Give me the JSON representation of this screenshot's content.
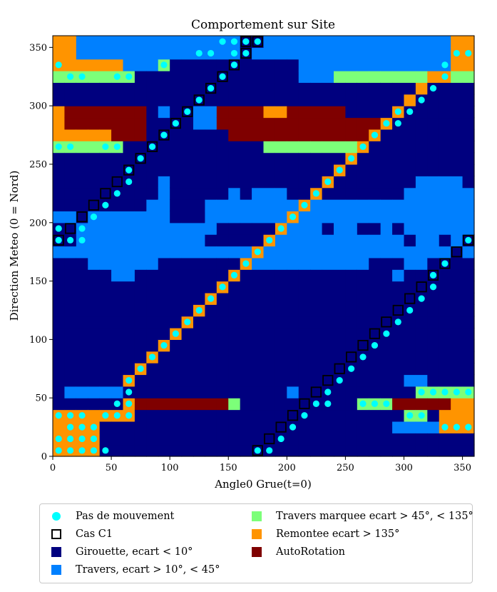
{
  "chart_data": {
    "type": "heatmap",
    "title": "Comportement sur Site",
    "xlabel": "Angle0 Grue(t=0)",
    "ylabel": "Direction Meteo (0 = Nord)",
    "xlim": [
      0,
      360
    ],
    "ylim": [
      0,
      360
    ],
    "xticks": [
      0,
      50,
      100,
      150,
      200,
      250,
      300,
      350
    ],
    "yticks": [
      0,
      50,
      100,
      150,
      200,
      250,
      300,
      350
    ],
    "cell_size": 10,
    "colors": {
      "girouette": "#00007f",
      "travers": "#0080ff",
      "travers_marquee": "#7cff79",
      "remontee": "#ff9400",
      "autorotation": "#7f0000",
      "pas_de_mouvement": "#00ffff",
      "cas_c1": "#000000"
    },
    "default_class": "girouette",
    "regions": [
      {
        "cls": "travers",
        "x": [
          20,
          360
        ],
        "y": [
          350,
          360
        ]
      },
      {
        "cls": "travers",
        "x": [
          20,
          360
        ],
        "y": [
          340,
          350
        ]
      },
      {
        "cls": "travers",
        "x": [
          50,
          90
        ],
        "y": [
          330,
          340
        ]
      },
      {
        "cls": "travers",
        "x": [
          210,
          340
        ],
        "y": [
          330,
          340
        ]
      },
      {
        "cls": "travers",
        "x": [
          210,
          340
        ],
        "y": [
          320,
          330
        ]
      },
      {
        "cls": "travers",
        "x": [
          120,
          140
        ],
        "y": [
          280,
          290
        ]
      },
      {
        "cls": "travers",
        "x": [
          120,
          140
        ],
        "y": [
          290,
          300
        ]
      },
      {
        "cls": "travers",
        "x": [
          90,
          100
        ],
        "y": [
          290,
          300
        ]
      },
      {
        "cls": "travers",
        "x": [
          40,
          50
        ],
        "y": [
          220,
          230
        ]
      },
      {
        "cls": "travers",
        "x": [
          30,
          40
        ],
        "y": [
          210,
          220
        ]
      },
      {
        "cls": "travers",
        "x": [
          50,
          60
        ],
        "y": [
          230,
          240
        ]
      },
      {
        "cls": "travers",
        "x": [
          80,
          100
        ],
        "y": [
          210,
          220
        ]
      },
      {
        "cls": "travers",
        "x": [
          90,
          100
        ],
        "y": [
          220,
          240
        ]
      },
      {
        "cls": "travers",
        "x": [
          170,
          200
        ],
        "y": [
          220,
          230
        ]
      },
      {
        "cls": "travers",
        "x": [
          150,
          160
        ],
        "y": [
          220,
          230
        ]
      },
      {
        "cls": "travers",
        "x": [
          300,
          360
        ],
        "y": [
          220,
          230
        ]
      },
      {
        "cls": "travers",
        "x": [
          310,
          350
        ],
        "y": [
          230,
          240
        ]
      },
      {
        "cls": "travers",
        "x": [
          130,
          360
        ],
        "y": [
          210,
          220
        ]
      },
      {
        "cls": "travers",
        "x": [
          0,
          100
        ],
        "y": [
          200,
          210
        ]
      },
      {
        "cls": "travers",
        "x": [
          130,
          360
        ],
        "y": [
          200,
          210
        ]
      },
      {
        "cls": "travers",
        "x": [
          20,
          140
        ],
        "y": [
          190,
          200
        ]
      },
      {
        "cls": "travers",
        "x": [
          190,
          260
        ],
        "y": [
          190,
          200
        ]
      },
      {
        "cls": "travers",
        "x": [
          280,
          360
        ],
        "y": [
          190,
          200
        ]
      },
      {
        "cls": "travers",
        "x": [
          20,
          130
        ],
        "y": [
          180,
          190
        ]
      },
      {
        "cls": "travers",
        "x": [
          190,
          360
        ],
        "y": [
          180,
          190
        ]
      },
      {
        "cls": "travers",
        "x": [
          0,
          360
        ],
        "y": [
          170,
          180
        ]
      },
      {
        "cls": "travers",
        "x": [
          30,
          90
        ],
        "y": [
          160,
          170
        ]
      },
      {
        "cls": "travers",
        "x": [
          170,
          270
        ],
        "y": [
          160,
          170
        ]
      },
      {
        "cls": "travers",
        "x": [
          300,
          320
        ],
        "y": [
          160,
          170
        ]
      },
      {
        "cls": "travers",
        "x": [
          50,
          70
        ],
        "y": [
          150,
          160
        ]
      },
      {
        "cls": "travers",
        "x": [
          290,
          300
        ],
        "y": [
          150,
          160
        ]
      },
      {
        "cls": "travers",
        "x": [
          10,
          60
        ],
        "y": [
          50,
          60
        ]
      },
      {
        "cls": "travers",
        "x": [
          200,
          210
        ],
        "y": [
          50,
          60
        ]
      },
      {
        "cls": "travers",
        "x": [
          300,
          320
        ],
        "y": [
          60,
          70
        ]
      },
      {
        "cls": "travers",
        "x": [
          290,
          330
        ],
        "y": [
          20,
          30
        ]
      },
      {
        "cls": "girouette",
        "x": [
          230,
          240
        ],
        "y": [
          190,
          200
        ]
      },
      {
        "cls": "girouette",
        "x": [
          260,
          270
        ],
        "y": [
          190,
          200
        ]
      },
      {
        "cls": "girouette",
        "x": [
          290,
          300
        ],
        "y": [
          190,
          200
        ]
      },
      {
        "cls": "girouette",
        "x": [
          300,
          310
        ],
        "y": [
          180,
          190
        ]
      },
      {
        "cls": "girouette",
        "x": [
          330,
          340
        ],
        "y": [
          180,
          190
        ]
      },
      {
        "cls": "remontee",
        "x": [
          0,
          20
        ],
        "y": [
          340,
          360
        ]
      },
      {
        "cls": "remontee",
        "x": [
          0,
          60
        ],
        "y": [
          330,
          340
        ]
      },
      {
        "cls": "remontee",
        "x": [
          340,
          360
        ],
        "y": [
          330,
          360
        ]
      },
      {
        "cls": "remontee",
        "x": [
          0,
          10
        ],
        "y": [
          280,
          300
        ]
      },
      {
        "cls": "remontee",
        "x": [
          0,
          50
        ],
        "y": [
          270,
          280
        ]
      },
      {
        "cls": "remontee",
        "x": [
          180,
          200
        ],
        "y": [
          290,
          300
        ]
      },
      {
        "cls": "remontee",
        "x": [
          0,
          40
        ],
        "y": [
          0,
          40
        ]
      },
      {
        "cls": "remontee",
        "x": [
          40,
          70
        ],
        "y": [
          30,
          40
        ]
      },
      {
        "cls": "remontee",
        "x": [
          330,
          360
        ],
        "y": [
          20,
          40
        ]
      },
      {
        "cls": "remontee",
        "x": [
          340,
          360
        ],
        "y": [
          40,
          50
        ]
      },
      {
        "cls": "travers_marquee",
        "x": [
          0,
          70
        ],
        "y": [
          320,
          330
        ]
      },
      {
        "cls": "travers_marquee",
        "x": [
          240,
          360
        ],
        "y": [
          320,
          330
        ]
      },
      {
        "cls": "travers_marquee",
        "x": [
          90,
          100
        ],
        "y": [
          330,
          340
        ]
      },
      {
        "cls": "travers_marquee",
        "x": [
          0,
          60
        ],
        "y": [
          260,
          270
        ]
      },
      {
        "cls": "travers_marquee",
        "x": [
          180,
          260
        ],
        "y": [
          260,
          270
        ]
      },
      {
        "cls": "travers_marquee",
        "x": [
          150,
          160
        ],
        "y": [
          40,
          50
        ]
      },
      {
        "cls": "travers_marquee",
        "x": [
          260,
          290
        ],
        "y": [
          40,
          50
        ]
      },
      {
        "cls": "travers_marquee",
        "x": [
          310,
          360
        ],
        "y": [
          50,
          60
        ]
      },
      {
        "cls": "travers_marquee",
        "x": [
          300,
          320
        ],
        "y": [
          30,
          40
        ]
      },
      {
        "cls": "autorotation",
        "x": [
          10,
          80
        ],
        "y": [
          290,
          300
        ]
      },
      {
        "cls": "autorotation",
        "x": [
          10,
          80
        ],
        "y": [
          280,
          290
        ]
      },
      {
        "cls": "autorotation",
        "x": [
          50,
          80
        ],
        "y": [
          270,
          280
        ]
      },
      {
        "cls": "autorotation",
        "x": [
          140,
          180
        ],
        "y": [
          290,
          300
        ]
      },
      {
        "cls": "autorotation",
        "x": [
          200,
          250
        ],
        "y": [
          290,
          300
        ]
      },
      {
        "cls": "autorotation",
        "x": [
          140,
          280
        ],
        "y": [
          280,
          290
        ]
      },
      {
        "cls": "autorotation",
        "x": [
          150,
          270
        ],
        "y": [
          270,
          280
        ]
      },
      {
        "cls": "autorotation",
        "x": [
          70,
          150
        ],
        "y": [
          40,
          50
        ]
      },
      {
        "cls": "autorotation",
        "x": [
          290,
          340
        ],
        "y": [
          40,
          50
        ]
      }
    ],
    "diagonals": [
      {
        "name": "girouette_diag_1",
        "cls": "girouette",
        "c1": true,
        "from": [
          0,
          180
        ],
        "to": [
          170,
          350
        ]
      },
      {
        "name": "girouette_diag_2",
        "cls": "girouette",
        "c1": true,
        "from": [
          170,
          0
        ],
        "to": [
          350,
          170
        ]
      },
      {
        "name": "remontee_diag",
        "cls": "remontee",
        "c1": false,
        "from": [
          60,
          60
        ],
        "to": [
          320,
          320
        ]
      }
    ],
    "extra_cells": [
      {
        "cls": "girouette",
        "c1": true,
        "x": 160,
        "y": 350
      },
      {
        "cls": "girouette",
        "c1": true,
        "x": 10,
        "y": 190
      },
      {
        "cls": "remontee",
        "c1": false,
        "x": 330,
        "y": 320
      },
      {
        "cls": "remontee",
        "c1": false,
        "x": 60,
        "y": 40
      },
      {
        "cls": "remontee",
        "c1": false,
        "x": 60,
        "y": 30
      }
    ],
    "pas_de_mouvement_points": [
      [
        145,
        355
      ],
      [
        155,
        355
      ],
      [
        165,
        355
      ],
      [
        175,
        355
      ],
      [
        125,
        345
      ],
      [
        135,
        345
      ],
      [
        155,
        345
      ],
      [
        165,
        345
      ],
      [
        345,
        345
      ],
      [
        355,
        345
      ],
      [
        5,
        335
      ],
      [
        95,
        335
      ],
      [
        155,
        335
      ],
      [
        335,
        335
      ],
      [
        15,
        325
      ],
      [
        25,
        325
      ],
      [
        55,
        325
      ],
      [
        65,
        325
      ],
      [
        145,
        325
      ],
      [
        335,
        325
      ],
      [
        135,
        315
      ],
      [
        325,
        315
      ],
      [
        125,
        305
      ],
      [
        315,
        305
      ],
      [
        115,
        295
      ],
      [
        305,
        295
      ],
      [
        295,
        295
      ],
      [
        105,
        285
      ],
      [
        295,
        285
      ],
      [
        285,
        285
      ],
      [
        95,
        275
      ],
      [
        275,
        275
      ],
      [
        5,
        265
      ],
      [
        15,
        265
      ],
      [
        45,
        265
      ],
      [
        55,
        265
      ],
      [
        85,
        265
      ],
      [
        265,
        265
      ],
      [
        75,
        255
      ],
      [
        255,
        255
      ],
      [
        65,
        245
      ],
      [
        245,
        245
      ],
      [
        65,
        235
      ],
      [
        235,
        235
      ],
      [
        55,
        225
      ],
      [
        225,
        225
      ],
      [
        45,
        215
      ],
      [
        215,
        215
      ],
      [
        35,
        205
      ],
      [
        205,
        205
      ],
      [
        5,
        195
      ],
      [
        25,
        195
      ],
      [
        195,
        195
      ],
      [
        5,
        185
      ],
      [
        15,
        185
      ],
      [
        25,
        185
      ],
      [
        185,
        185
      ],
      [
        355,
        185
      ],
      [
        175,
        175
      ],
      [
        165,
        165
      ],
      [
        335,
        165
      ],
      [
        155,
        155
      ],
      [
        325,
        155
      ],
      [
        145,
        145
      ],
      [
        325,
        145
      ],
      [
        135,
        135
      ],
      [
        315,
        135
      ],
      [
        125,
        125
      ],
      [
        305,
        125
      ],
      [
        115,
        115
      ],
      [
        295,
        115
      ],
      [
        105,
        105
      ],
      [
        285,
        105
      ],
      [
        95,
        95
      ],
      [
        275,
        95
      ],
      [
        85,
        85
      ],
      [
        265,
        85
      ],
      [
        75,
        75
      ],
      [
        255,
        75
      ],
      [
        65,
        65
      ],
      [
        245,
        65
      ],
      [
        65,
        55
      ],
      [
        235,
        55
      ],
      [
        315,
        55
      ],
      [
        325,
        55
      ],
      [
        335,
        55
      ],
      [
        345,
        55
      ],
      [
        355,
        55
      ],
      [
        55,
        45
      ],
      [
        65,
        45
      ],
      [
        225,
        45
      ],
      [
        235,
        45
      ],
      [
        265,
        45
      ],
      [
        275,
        45
      ],
      [
        285,
        45
      ],
      [
        5,
        35
      ],
      [
        15,
        35
      ],
      [
        25,
        35
      ],
      [
        45,
        35
      ],
      [
        55,
        35
      ],
      [
        65,
        35
      ],
      [
        215,
        35
      ],
      [
        305,
        35
      ],
      [
        315,
        35
      ],
      [
        15,
        25
      ],
      [
        25,
        25
      ],
      [
        35,
        25
      ],
      [
        205,
        25
      ],
      [
        335,
        25
      ],
      [
        345,
        25
      ],
      [
        355,
        25
      ],
      [
        5,
        15
      ],
      [
        15,
        15
      ],
      [
        25,
        15
      ],
      [
        35,
        15
      ],
      [
        195,
        15
      ],
      [
        5,
        5
      ],
      [
        15,
        5
      ],
      [
        25,
        5
      ],
      [
        35,
        5
      ],
      [
        45,
        5
      ],
      [
        175,
        5
      ],
      [
        185,
        5
      ]
    ]
  },
  "legend": {
    "items": [
      {
        "key": "pas_de_mouvement",
        "label": "Pas de mouvement",
        "marker": "dot",
        "color": "#00ffff"
      },
      {
        "key": "cas_c1",
        "label": "Cas C1",
        "marker": "open-square",
        "color": "#000000"
      },
      {
        "key": "girouette",
        "label": "Girouette, ecart < 10°",
        "marker": "square",
        "color": "#00007f"
      },
      {
        "key": "travers",
        "label": "Travers, ecart > 10°, < 45°",
        "marker": "square",
        "color": "#0080ff"
      },
      {
        "key": "travers_marquee",
        "label": "Travers marquee ecart > 45°, < 135°",
        "marker": "square",
        "color": "#7cff79"
      },
      {
        "key": "remontee",
        "label": "Remontee ecart > 135°",
        "marker": "square",
        "color": "#ff9400"
      },
      {
        "key": "autorotation",
        "label": "AutoRotation",
        "marker": "square",
        "color": "#7f0000"
      }
    ]
  }
}
